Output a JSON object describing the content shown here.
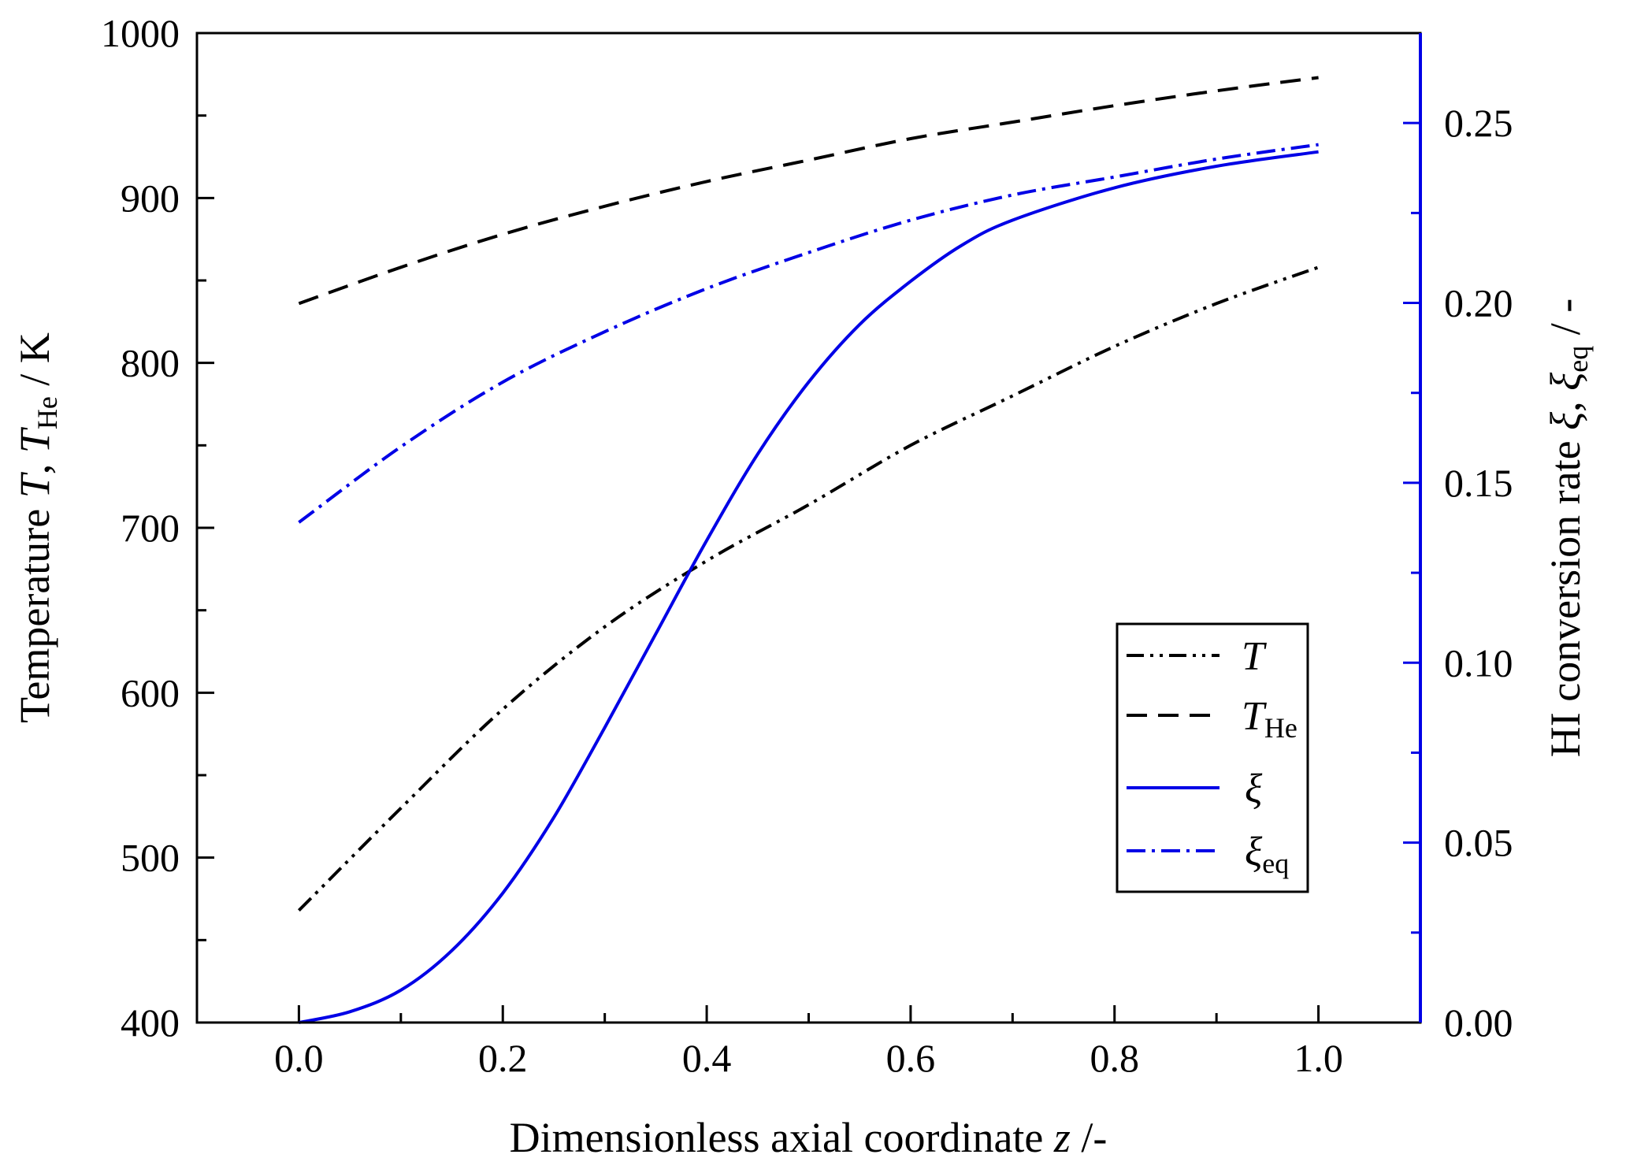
{
  "chart_data": {
    "type": "line",
    "xlabel": {
      "main": "Dimensionless axial coordinate ",
      "var": "z",
      "unit": " /-"
    },
    "ylabel": {
      "prefix": "Temperature ",
      "t": "T",
      "sep": ", ",
      "t2": "T",
      "sub": "He",
      "unit": " / K"
    },
    "y2label": {
      "prefix": "HI conversion rate  ",
      "xi": "ξ",
      "sep": ", ",
      "xi2": "ξ",
      "sub": "eq",
      "unit": "  / -"
    },
    "xlim": [
      -0.1,
      1.1
    ],
    "ylim": [
      400,
      1000
    ],
    "y2lim": [
      0.0,
      0.275
    ],
    "xticks": [
      0.0,
      0.2,
      0.4,
      0.6,
      0.8,
      1.0
    ],
    "xtick_labels": [
      "0.0",
      "0.2",
      "0.4",
      "0.6",
      "0.8",
      "1.0"
    ],
    "yticks": [
      400,
      500,
      600,
      700,
      800,
      900,
      1000
    ],
    "ytick_labels": [
      "400",
      "500",
      "600",
      "700",
      "800",
      "900",
      "1000"
    ],
    "y2ticks": [
      0.0,
      0.05,
      0.1,
      0.15,
      0.2,
      0.25
    ],
    "y2tick_labels": [
      "0.00",
      "0.05",
      "0.10",
      "0.15",
      "0.20",
      "0.25"
    ],
    "colors": {
      "black": "#000000",
      "blue": "#0000e6"
    },
    "series": [
      {
        "name": "T",
        "label": "T",
        "sub": "",
        "axis": "left",
        "style": "dash-dot-dot",
        "color": "#000000",
        "x": [
          0.0,
          0.1,
          0.2,
          0.3,
          0.4,
          0.5,
          0.6,
          0.7,
          0.8,
          0.9,
          1.0
        ],
        "y": [
          468,
          530,
          590,
          640,
          680,
          714,
          750,
          780,
          810,
          836,
          858
        ]
      },
      {
        "name": "T_He",
        "label": "T",
        "sub": "He",
        "axis": "left",
        "style": "dash",
        "color": "#000000",
        "x": [
          0.0,
          0.1,
          0.2,
          0.3,
          0.4,
          0.5,
          0.6,
          0.7,
          0.8,
          0.9,
          1.0
        ],
        "y": [
          836,
          858,
          878,
          895,
          910,
          923,
          936,
          946,
          956,
          965,
          973
        ]
      },
      {
        "name": "xi",
        "label": "ξ",
        "sub": "",
        "axis": "right",
        "style": "solid",
        "color": "#0000e6",
        "x": [
          0.0,
          0.05,
          0.1,
          0.15,
          0.2,
          0.25,
          0.3,
          0.35,
          0.4,
          0.45,
          0.5,
          0.55,
          0.6,
          0.65,
          0.7,
          0.8,
          0.9,
          1.0
        ],
        "y": [
          0.0,
          0.003,
          0.009,
          0.02,
          0.036,
          0.057,
          0.082,
          0.108,
          0.134,
          0.158,
          0.178,
          0.194,
          0.206,
          0.216,
          0.223,
          0.232,
          0.238,
          0.242
        ]
      },
      {
        "name": "xi_eq",
        "label": "ξ",
        "sub": "eq",
        "axis": "right",
        "style": "dash-dot",
        "color": "#0000e6",
        "x": [
          0.0,
          0.1,
          0.2,
          0.3,
          0.4,
          0.5,
          0.6,
          0.7,
          0.8,
          0.9,
          1.0
        ],
        "y": [
          0.139,
          0.16,
          0.178,
          0.192,
          0.204,
          0.214,
          0.223,
          0.23,
          0.235,
          0.24,
          0.244
        ]
      }
    ],
    "legend": "lower-right"
  }
}
